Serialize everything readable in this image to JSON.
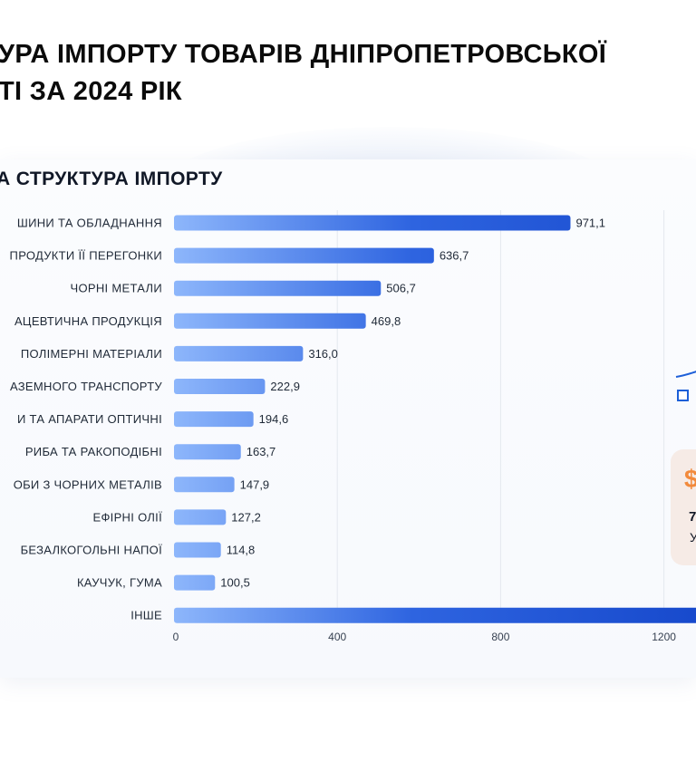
{
  "header": {
    "title_line1": "УРА ІМПОРТУ ТОВАРІВ ДНІПРОПЕТРОВСЬКОЇ",
    "title_line2": "ТІ ЗА 2024 РІК"
  },
  "colors": {
    "bar_start": "#8db6fb",
    "bar_end": "#1749cc",
    "grid": "#e4e8ef",
    "accent": "#f28a3c",
    "panel_bg": "#f6ebe6"
  },
  "right_panel": {
    "icon": "dollar-icon",
    "symbol": "$",
    "value": "7",
    "label": "У"
  },
  "chart_data": {
    "type": "bar",
    "orientation": "horizontal",
    "title": "А СТРУКТУРА ІМПОРТУ",
    "categories": [
      "ШИНИ ТА ОБЛАДНАННЯ",
      "ПРОДУКТИ ЇЇ ПЕРЕГОНКИ",
      "ЧОРНІ МЕТАЛИ",
      "АЦЕВТИЧНА ПРОДУКЦІЯ",
      "ПОЛІМЕРНІ МАТЕРІАЛИ",
      "АЗЕМНОГО ТРАНСПОРТУ",
      "И ТА АПАРАТИ ОПТИЧНІ",
      "РИБА ТА РАКОПОДІБНІ",
      "ОБИ З ЧОРНИХ МЕТАЛІВ",
      "ЕФІРНІ ОЛІЇ",
      "БЕЗАЛКОГОЛЬНІ НАПОЇ",
      "КАУЧУК, ГУМА",
      "ІНШЕ"
    ],
    "values": [
      971.1,
      636.7,
      506.7,
      469.8,
      316.0,
      222.9,
      194.6,
      163.7,
      147.9,
      127.2,
      114.8,
      100.5,
      1290
    ],
    "value_labels": [
      "971,1",
      "636,7",
      "506,7",
      "469,8",
      "316,0",
      "222,9",
      "194,6",
      "163,7",
      "147,9",
      "127,2",
      "114,8",
      "100,5",
      ""
    ],
    "xticks": [
      0,
      400,
      800,
      1200
    ],
    "xlim": [
      0,
      1300
    ],
    "grid": true
  }
}
